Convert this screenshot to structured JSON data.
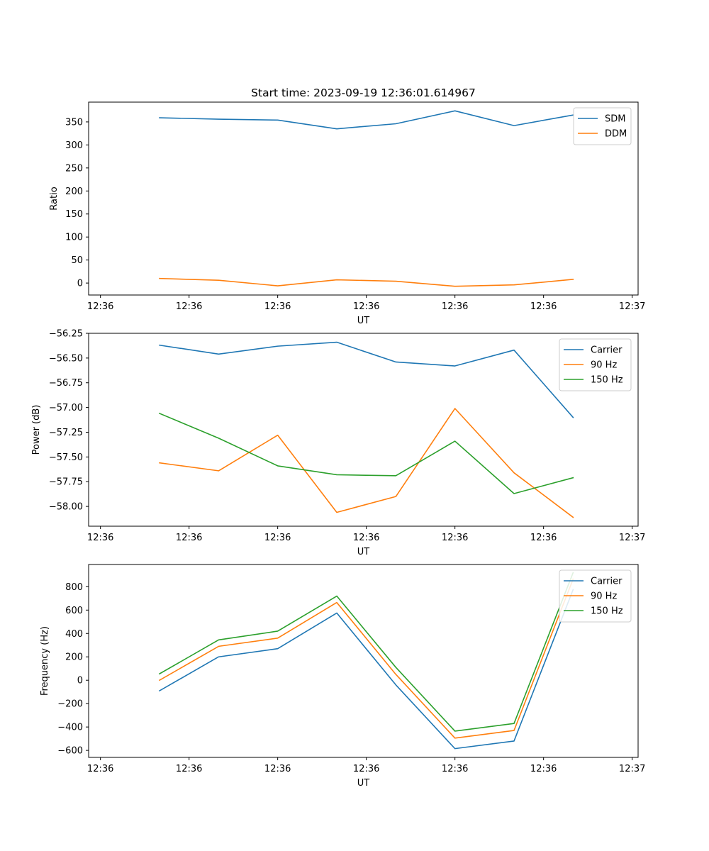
{
  "figure": {
    "title": "Start time: 2023-09-19 12:36:01.614967"
  },
  "colors": {
    "blue": "#1f77b4",
    "orange": "#ff7f0e",
    "green": "#2ca02c"
  },
  "chart_data": [
    {
      "type": "line",
      "title": "Start time: 2023-09-19 12:36:01.614967",
      "xlabel": "UT",
      "ylabel": "Ratio",
      "xlim": [
        -0.2,
        9.1
      ],
      "ylim": [
        -26,
        393
      ],
      "x": [
        1,
        2,
        3,
        4,
        5,
        6,
        7,
        8
      ],
      "x_tick_positions": [
        0,
        1.5,
        3,
        4.5,
        6,
        7.5,
        9
      ],
      "x_tick_labels": [
        "12:36",
        "12:36",
        "12:36",
        "12:36",
        "12:36",
        "12:36",
        "12:37"
      ],
      "y_ticks": [
        0,
        50,
        100,
        150,
        200,
        250,
        300,
        350
      ],
      "y_tick_labels": [
        "0",
        "50",
        "100",
        "150",
        "200",
        "250",
        "300",
        "350"
      ],
      "legend_position": "top-right",
      "series": [
        {
          "name": "SDM",
          "color": "#1f77b4",
          "values": [
            359,
            356,
            354,
            335,
            346,
            374,
            342,
            365
          ]
        },
        {
          "name": "DDM",
          "color": "#ff7f0e",
          "values": [
            10,
            6,
            -6,
            7,
            4,
            -7,
            -4,
            8
          ]
        }
      ]
    },
    {
      "type": "line",
      "xlabel": "UT",
      "ylabel": "Power (dB)",
      "xlim": [
        -0.2,
        9.1
      ],
      "ylim": [
        -58.2,
        -56.25
      ],
      "x": [
        1,
        2,
        3,
        4,
        5,
        6,
        7,
        8
      ],
      "x_tick_positions": [
        0,
        1.5,
        3,
        4.5,
        6,
        7.5,
        9
      ],
      "x_tick_labels": [
        "12:36",
        "12:36",
        "12:36",
        "12:36",
        "12:36",
        "12:36",
        "12:37"
      ],
      "y_ticks": [
        -58.0,
        -57.75,
        -57.5,
        -57.25,
        -57.0,
        -56.75,
        -56.5,
        -56.25
      ],
      "y_tick_labels": [
        "−58.00",
        "−57.75",
        "−57.50",
        "−57.25",
        "−57.00",
        "−56.75",
        "−56.50",
        "−56.25"
      ],
      "legend_position": "top-right",
      "series": [
        {
          "name": "Carrier",
          "color": "#1f77b4",
          "values": [
            -56.37,
            -56.46,
            -56.38,
            -56.34,
            -56.54,
            -56.58,
            -56.42,
            -57.1
          ]
        },
        {
          "name": "90 Hz",
          "color": "#ff7f0e",
          "values": [
            -57.56,
            -57.64,
            -57.28,
            -58.06,
            -57.9,
            -57.01,
            -57.66,
            -58.11
          ]
        },
        {
          "name": "150 Hz",
          "color": "#2ca02c",
          "values": [
            -57.06,
            -57.31,
            -57.59,
            -57.68,
            -57.69,
            -57.34,
            -57.87,
            -57.71
          ]
        }
      ]
    },
    {
      "type": "line",
      "xlabel": "UT",
      "ylabel": "Frequency (Hz)",
      "xlim": [
        -0.2,
        9.1
      ],
      "ylim": [
        -660,
        990
      ],
      "x": [
        1,
        2,
        3,
        4,
        5,
        6,
        7,
        8
      ],
      "x_tick_positions": [
        0,
        1.5,
        3,
        4.5,
        6,
        7.5,
        9
      ],
      "x_tick_labels": [
        "12:36",
        "12:36",
        "12:36",
        "12:36",
        "12:36",
        "12:36",
        "12:37"
      ],
      "y_ticks": [
        -600,
        -400,
        -200,
        0,
        200,
        400,
        600,
        800
      ],
      "y_tick_labels": [
        "−600",
        "−400",
        "−200",
        "0",
        "200",
        "400",
        "600",
        "800"
      ],
      "legend_position": "top-right",
      "series": [
        {
          "name": "Carrier",
          "color": "#1f77b4",
          "values": [
            -90,
            200,
            270,
            575,
            -40,
            -585,
            -520,
            775
          ]
        },
        {
          "name": "90 Hz",
          "color": "#ff7f0e",
          "values": [
            0,
            290,
            360,
            665,
            50,
            -495,
            -430,
            865
          ]
        },
        {
          "name": "150 Hz",
          "color": "#2ca02c",
          "values": [
            55,
            345,
            420,
            720,
            110,
            -435,
            -370,
            920
          ]
        }
      ]
    }
  ]
}
